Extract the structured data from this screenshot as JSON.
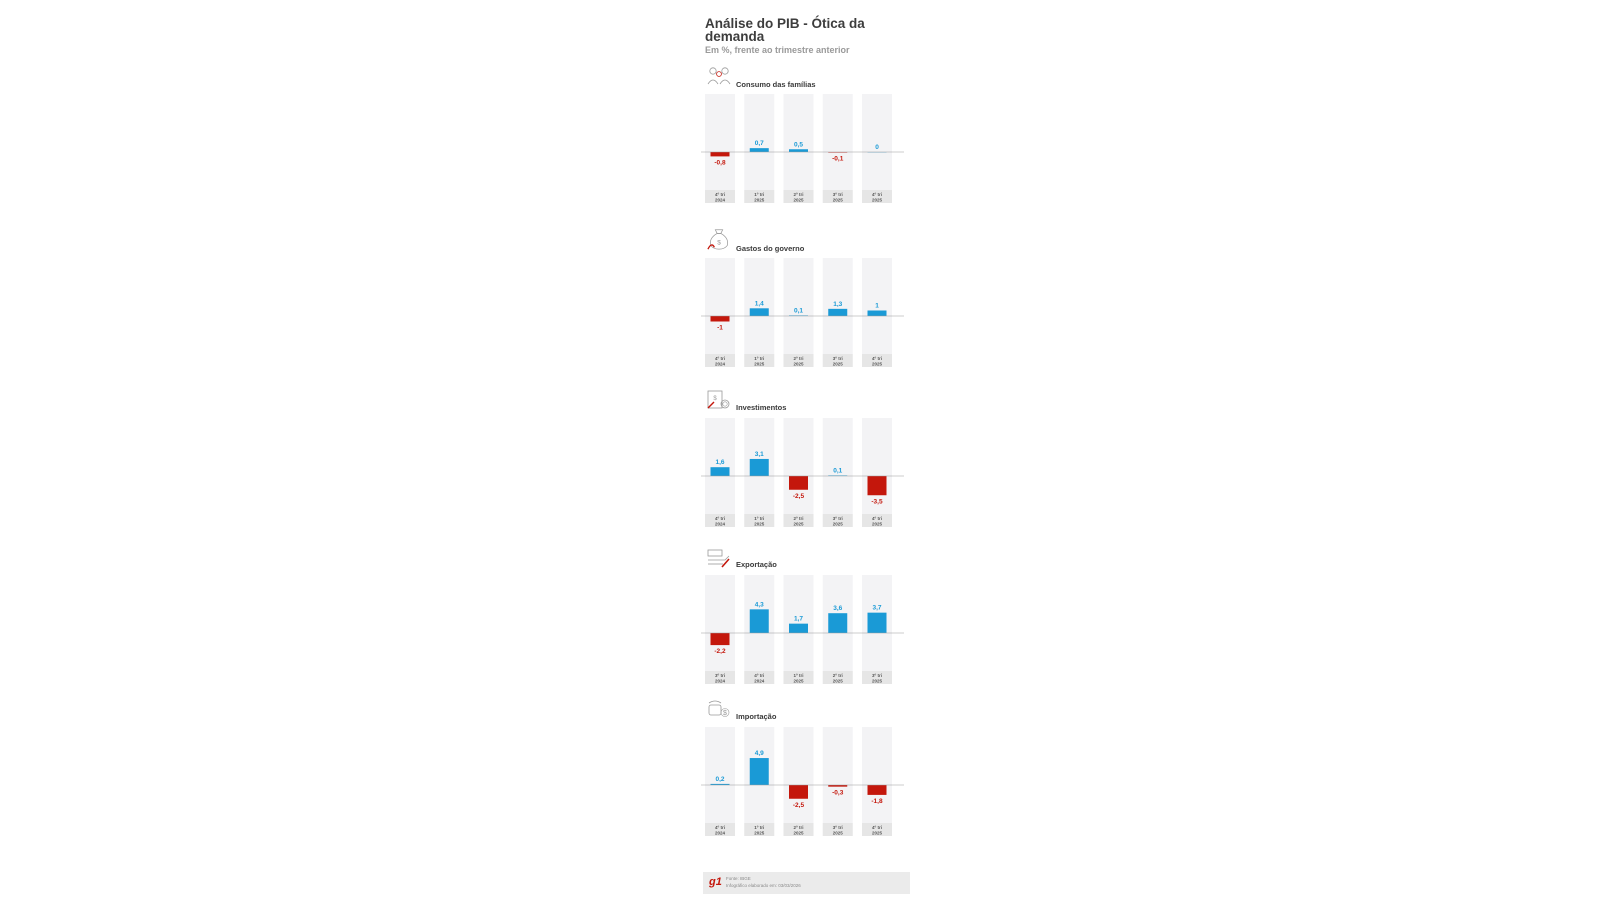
{
  "title": "Análise do PIB - Ótica da demanda",
  "subtitle": "Em %, frente ao trimestre anterior",
  "colors": {
    "positive": "#1a9ad6",
    "negative": "#c4170c",
    "column_bg": "#f3f3f5",
    "label_bg": "#e6e6e6"
  },
  "icons": [
    "family-icon",
    "money-bag-icon",
    "investment-icon",
    "export-icon",
    "import-icon"
  ],
  "chart_data": [
    {
      "type": "bar",
      "title": "Consumo das famílias",
      "categories": [
        [
          "4º tri",
          "2024"
        ],
        [
          "1º tri",
          "2025"
        ],
        [
          "2º tri",
          "2025"
        ],
        [
          "3º tri",
          "2025"
        ],
        [
          "4º tri",
          "2025"
        ]
      ],
      "values": [
        -0.8,
        0.7,
        0.5,
        -0.1,
        0
      ],
      "value_labels": [
        "-0,8",
        "0,7",
        "0,5",
        "-0,1",
        "0"
      ],
      "ylim": [
        -5,
        5
      ]
    },
    {
      "type": "bar",
      "title": "Gastos do governo",
      "categories": [
        [
          "4º tri",
          "2024"
        ],
        [
          "1º tri",
          "2025"
        ],
        [
          "2º tri",
          "2025"
        ],
        [
          "3º tri",
          "2025"
        ],
        [
          "4º tri",
          "2025"
        ]
      ],
      "values": [
        -1,
        1.4,
        0.1,
        1.3,
        1
      ],
      "value_labels": [
        "-1",
        "1,4",
        "0,1",
        "1,3",
        "1"
      ],
      "ylim": [
        -5,
        5
      ]
    },
    {
      "type": "bar",
      "title": "Investimentos",
      "categories": [
        [
          "4º tri",
          "2024"
        ],
        [
          "1º tri",
          "2025"
        ],
        [
          "2º tri",
          "2025"
        ],
        [
          "3º tri",
          "2025"
        ],
        [
          "4º tri",
          "2025"
        ]
      ],
      "values": [
        1.6,
        3.1,
        -2.5,
        0.1,
        -3.5
      ],
      "value_labels": [
        "1,6",
        "3,1",
        "-2,5",
        "0,1",
        "-3,5"
      ],
      "ylim": [
        -5,
        5
      ]
    },
    {
      "type": "bar",
      "title": "Exportação",
      "categories": [
        [
          "3º tri",
          "2024"
        ],
        [
          "4º tri",
          "2024"
        ],
        [
          "1º tri",
          "2025"
        ],
        [
          "2º tri",
          "2025"
        ],
        [
          "3º tri",
          "2025"
        ]
      ],
      "values": [
        -2.2,
        4.3,
        1.7,
        3.6,
        3.7
      ],
      "value_labels": [
        "-2,2",
        "4,3",
        "1,7",
        "3,6",
        "3,7"
      ],
      "ylim": [
        -5,
        5
      ]
    },
    {
      "type": "bar",
      "title": "Importação",
      "categories": [
        [
          "4º tri",
          "2024"
        ],
        [
          "1º tri",
          "2025"
        ],
        [
          "2º tri",
          "2025"
        ],
        [
          "3º tri",
          "2025"
        ],
        [
          "4º tri",
          "2025"
        ]
      ],
      "values": [
        0.2,
        4.9,
        -2.5,
        -0.3,
        -1.8
      ],
      "value_labels": [
        "0,2",
        "4,9",
        "-2,5",
        "-0,3",
        "-1,8"
      ],
      "ylim": [
        -5,
        5
      ]
    }
  ],
  "footer": {
    "logo": "g1",
    "source": "Fonte: IBGE",
    "note": "Infográfico elaborado em: 03/03/2026"
  }
}
